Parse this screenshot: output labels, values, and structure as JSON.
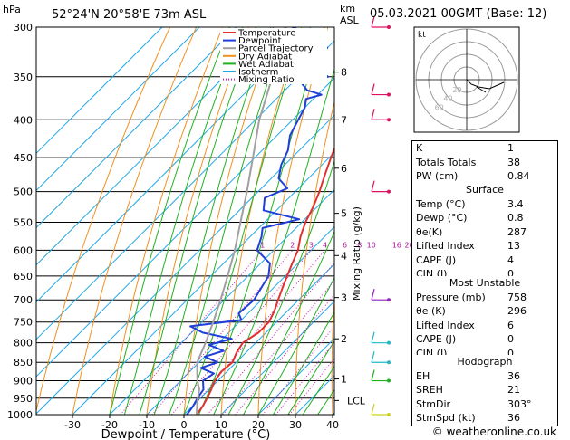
{
  "header": {
    "location": "52°24'N  20°58'E  73m  ASL",
    "date": "05.03.2021  00GMT  (Base: 12)",
    "p_unit": "hPa",
    "km_unit": "km",
    "asl_unit": "ASL"
  },
  "legend": [
    {
      "label": "Temperature",
      "color": "#e03030",
      "style": "solid"
    },
    {
      "label": "Dewpoint",
      "color": "#1f3fd8",
      "style": "solid"
    },
    {
      "label": "Parcel Trajectory",
      "color": "#a0a0a0",
      "style": "solid"
    },
    {
      "label": "Dry Adiabat",
      "color": "#f09020",
      "style": "solid"
    },
    {
      "label": "Wet Adiabat",
      "color": "#20b020",
      "style": "solid"
    },
    {
      "label": "Isotherm",
      "color": "#20a8e8",
      "style": "solid"
    },
    {
      "label": "Mixing Ratio",
      "color": "#d020b0",
      "style": "dotted"
    }
  ],
  "chart_data": {
    "type": "line",
    "subtype": "skew-T log-P",
    "xlabel": "Dewpoint / Temperature (°C)",
    "ylabel": "hPa",
    "right_axis_label": "Mixing Ratio (g/kg)",
    "xlim": [
      -35,
      40
    ],
    "ylim": [
      1000,
      300
    ],
    "x_ticks": [
      -30,
      -20,
      -10,
      0,
      10,
      20,
      30,
      40
    ],
    "pressure_levels": [
      300,
      350,
      400,
      450,
      500,
      550,
      600,
      650,
      700,
      750,
      800,
      850,
      900,
      950,
      1000
    ],
    "km_ticks": [
      {
        "label": "8",
        "p": 345
      },
      {
        "label": "7",
        "p": 400
      },
      {
        "label": "6",
        "p": 465
      },
      {
        "label": "5",
        "p": 535
      },
      {
        "label": "4",
        "p": 610
      },
      {
        "label": "3",
        "p": 695
      },
      {
        "label": "2",
        "p": 790
      },
      {
        "label": "1",
        "p": 895
      }
    ],
    "lcl": {
      "label": "LCL",
      "p": 957
    },
    "mixing_ratio_labels": [
      "1",
      "2",
      "3",
      "4",
      "6",
      "8",
      "10",
      "16",
      "20",
      "25"
    ],
    "series": [
      {
        "name": "Temperature",
        "points": [
          [
            3.4,
            1000
          ],
          [
            2.8,
            975
          ],
          [
            1.8,
            950
          ],
          [
            0.6,
            925
          ],
          [
            -0.8,
            900
          ],
          [
            -1.5,
            875
          ],
          [
            -1.0,
            850
          ],
          [
            -2.5,
            825
          ],
          [
            -3.5,
            800
          ],
          [
            -2.0,
            775
          ],
          [
            -2.0,
            750
          ],
          [
            -3.5,
            725
          ],
          [
            -5.5,
            700
          ],
          [
            -7.5,
            675
          ],
          [
            -9.5,
            650
          ],
          [
            -11.5,
            625
          ],
          [
            -13.5,
            600
          ],
          [
            -16.5,
            575
          ],
          [
            -19.0,
            550
          ],
          [
            -21.0,
            525
          ],
          [
            -23.5,
            500
          ],
          [
            -26.5,
            475
          ],
          [
            -29.5,
            450
          ],
          [
            -32.5,
            425
          ],
          [
            -35.5,
            400
          ],
          [
            -38.5,
            380
          ],
          [
            -40.5,
            365
          ],
          [
            -42.5,
            350
          ],
          [
            -45.5,
            330
          ],
          [
            -48.5,
            315
          ],
          [
            -51.5,
            300
          ]
        ]
      },
      {
        "name": "Dewpoint",
        "points": [
          [
            0.8,
            1000
          ],
          [
            0.2,
            975
          ],
          [
            -0.8,
            950
          ],
          [
            -1.5,
            925
          ],
          [
            -4.0,
            900
          ],
          [
            -3.0,
            880
          ],
          [
            -8.0,
            865
          ],
          [
            -5.0,
            850
          ],
          [
            -10.0,
            835
          ],
          [
            -6.5,
            820
          ],
          [
            -12.0,
            805
          ],
          [
            -7.5,
            790
          ],
          [
            -17.0,
            775
          ],
          [
            -22.0,
            760
          ],
          [
            -10.0,
            745
          ],
          [
            -12.5,
            730
          ],
          [
            -12.0,
            700
          ],
          [
            -13.5,
            670
          ],
          [
            -14.5,
            650
          ],
          [
            -17.5,
            625
          ],
          [
            -24.5,
            600
          ],
          [
            -27.0,
            575
          ],
          [
            -29.0,
            560
          ],
          [
            -21.5,
            545
          ],
          [
            -33.5,
            530
          ],
          [
            -36.5,
            510
          ],
          [
            -33.0,
            495
          ],
          [
            -38.0,
            480
          ],
          [
            -41.0,
            460
          ],
          [
            -43.0,
            440
          ],
          [
            -46.5,
            420
          ],
          [
            -48.5,
            400
          ],
          [
            -50.0,
            385
          ],
          [
            -52.0,
            375
          ],
          [
            -49.0,
            370
          ],
          [
            -54.0,
            365
          ],
          [
            -57.0,
            358
          ],
          [
            -52.0,
            350
          ],
          [
            -58.0,
            340
          ],
          [
            -60.0,
            330
          ],
          [
            -60.0,
            320
          ],
          [
            -64.0,
            312
          ],
          [
            -70.0,
            305
          ],
          [
            -75.0,
            300
          ]
        ]
      },
      {
        "name": "Parcel Trajectory",
        "points": [
          [
            3.4,
            1000
          ],
          [
            -0.2,
            957
          ],
          [
            -2.6,
            925
          ],
          [
            -5.5,
            900
          ],
          [
            -8.0,
            875
          ],
          [
            -10.5,
            850
          ],
          [
            -13.5,
            800
          ],
          [
            -17.0,
            750
          ],
          [
            -21.0,
            700
          ],
          [
            -25.5,
            650
          ],
          [
            -30.5,
            600
          ],
          [
            -36.5,
            550
          ],
          [
            -43.0,
            500
          ],
          [
            -50.5,
            450
          ],
          [
            -59.0,
            400
          ],
          [
            -67.0,
            350
          ],
          [
            -77.0,
            300
          ]
        ]
      }
    ]
  },
  "hodograph": {
    "label": "kt",
    "ring_labels": [
      "20",
      "40",
      "60"
    ]
  },
  "indices": {
    "rows": [
      {
        "label": "K",
        "value": "1"
      },
      {
        "label": "Totals Totals",
        "value": "38"
      },
      {
        "label": "PW (cm)",
        "value": "0.84"
      }
    ]
  },
  "surface": {
    "title": "Surface",
    "rows": [
      {
        "label": "Temp (°C)",
        "value": "3.4"
      },
      {
        "label": "Dewp (°C)",
        "value": "0.8"
      },
      {
        "label": "θe(K)",
        "value": "287"
      },
      {
        "label": "Lifted Index",
        "value": "13"
      },
      {
        "label": "CAPE (J)",
        "value": "4"
      },
      {
        "label": "CIN (J)",
        "value": "0"
      }
    ]
  },
  "unstable": {
    "title": "Most Unstable",
    "rows": [
      {
        "label": "Pressure (mb)",
        "value": "758"
      },
      {
        "label": "θe (K)",
        "value": "296"
      },
      {
        "label": "Lifted Index",
        "value": "6"
      },
      {
        "label": "CAPE (J)",
        "value": "0"
      },
      {
        "label": "CIN (J)",
        "value": "0"
      }
    ]
  },
  "hodo_stats": {
    "title": "Hodograph",
    "rows": [
      {
        "label": "EH",
        "value": "36"
      },
      {
        "label": "SREH",
        "value": "21"
      },
      {
        "label": "StmDir",
        "value": "303°"
      },
      {
        "label": "StmSpd (kt)",
        "value": "36"
      }
    ]
  },
  "credit": "© weatheronline.co.uk"
}
